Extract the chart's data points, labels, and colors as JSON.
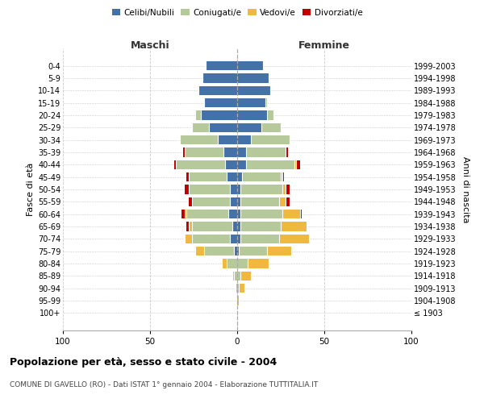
{
  "age_groups": [
    "0-4",
    "5-9",
    "10-14",
    "15-19",
    "20-24",
    "25-29",
    "30-34",
    "35-39",
    "40-44",
    "45-49",
    "50-54",
    "55-59",
    "60-64",
    "65-69",
    "70-74",
    "75-79",
    "80-84",
    "85-89",
    "90-94",
    "95-99",
    "100+"
  ],
  "birth_years": [
    "1999-2003",
    "1994-1998",
    "1989-1993",
    "1984-1988",
    "1979-1983",
    "1974-1978",
    "1969-1973",
    "1964-1968",
    "1959-1963",
    "1954-1958",
    "1949-1953",
    "1944-1948",
    "1939-1943",
    "1934-1938",
    "1929-1933",
    "1924-1928",
    "1919-1923",
    "1914-1918",
    "1909-1913",
    "1904-1908",
    "≤ 1903"
  ],
  "male": {
    "celibi": [
      18,
      20,
      22,
      19,
      21,
      16,
      11,
      8,
      7,
      6,
      4,
      4,
      5,
      3,
      4,
      2,
      0,
      0,
      0,
      0,
      0
    ],
    "coniugati": [
      0,
      0,
      0,
      0,
      3,
      10,
      22,
      22,
      28,
      22,
      24,
      22,
      24,
      23,
      22,
      17,
      6,
      2,
      1,
      0,
      0
    ],
    "vedovi": [
      0,
      0,
      0,
      0,
      0,
      0,
      0,
      0,
      0,
      0,
      0,
      0,
      1,
      2,
      4,
      5,
      3,
      1,
      0,
      0,
      0
    ],
    "divorziati": [
      0,
      0,
      0,
      0,
      0,
      0,
      0,
      1,
      1,
      1,
      2,
      2,
      2,
      1,
      0,
      0,
      0,
      0,
      0,
      0,
      0
    ]
  },
  "female": {
    "nubili": [
      15,
      18,
      19,
      16,
      17,
      14,
      8,
      5,
      5,
      3,
      2,
      2,
      2,
      2,
      2,
      1,
      0,
      0,
      0,
      0,
      0
    ],
    "coniugate": [
      0,
      0,
      0,
      1,
      4,
      11,
      22,
      23,
      28,
      22,
      24,
      22,
      24,
      23,
      22,
      16,
      6,
      2,
      1,
      0,
      0
    ],
    "vedove": [
      0,
      0,
      0,
      0,
      0,
      0,
      0,
      0,
      1,
      1,
      2,
      4,
      10,
      15,
      17,
      14,
      12,
      6,
      3,
      1,
      0
    ],
    "divorziate": [
      0,
      0,
      0,
      0,
      0,
      0,
      0,
      1,
      2,
      1,
      2,
      2,
      1,
      0,
      0,
      0,
      0,
      0,
      0,
      0,
      0
    ]
  },
  "colors": {
    "celibi_nubili": "#4472a8",
    "coniugati": "#b5c99a",
    "vedovi": "#f0b840",
    "divorziati": "#c00000"
  },
  "xlim": 100,
  "title": "Popolazione per età, sesso e stato civile - 2004",
  "subtitle": "COMUNE DI GAVELLO (RO) - Dati ISTAT 1° gennaio 2004 - Elaborazione TUTTITALIA.IT",
  "ylabel": "Fasce di età",
  "ylabel_right": "Anni di nascita",
  "xlabel_left": "Maschi",
  "xlabel_right": "Femmine",
  "background_color": "#ffffff",
  "grid_color": "#cccccc"
}
